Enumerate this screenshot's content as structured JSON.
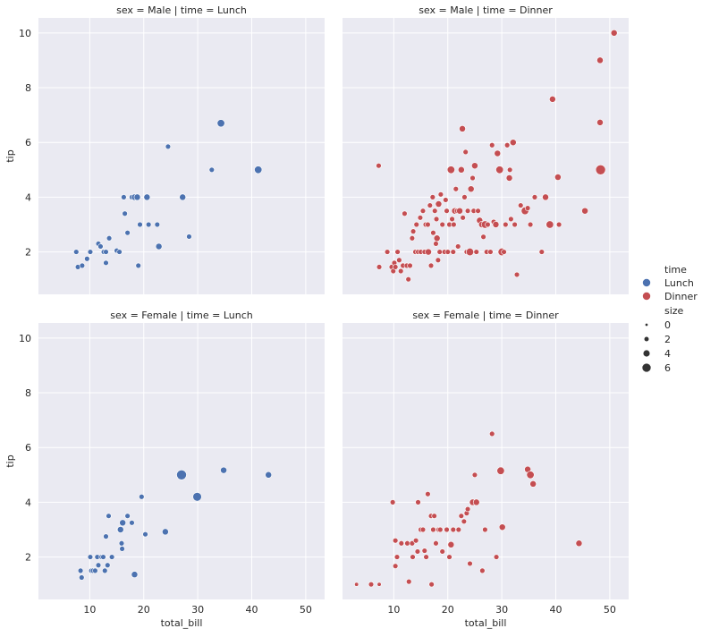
{
  "chart_data": {
    "type": "scatter",
    "xlim": [
      0.5,
      53.5
    ],
    "ylim": [
      0.45,
      10.55
    ],
    "x_ticks": [
      "10",
      "20",
      "30",
      "40",
      "50"
    ],
    "y_ticks": [
      "2",
      "4",
      "6",
      "8",
      "10"
    ],
    "xlabel": "total_bill",
    "ylabel": "tip",
    "grid": true,
    "legend_placement": "center-right",
    "colors": {
      "Lunch": "#4c72b0",
      "Dinner": "#c44e52",
      "background": "#eaeaf2",
      "grid": "#ffffff"
    },
    "legend": {
      "hue_title": "time",
      "hue_entries": [
        "Lunch",
        "Dinner"
      ],
      "size_title": "size",
      "size_entries": [
        {
          "label": "0",
          "value": 0
        },
        {
          "label": "2",
          "value": 2
        },
        {
          "label": "4",
          "value": 4
        },
        {
          "label": "6",
          "value": 6
        }
      ]
    },
    "panels": [
      {
        "title": "sex = Male | time = Lunch",
        "hue": "Lunch",
        "row": 0,
        "col": 0,
        "points": [
          [
            7.5,
            2.0,
            2
          ],
          [
            7.8,
            1.45,
            2
          ],
          [
            8.6,
            1.5,
            2
          ],
          [
            9.5,
            1.75,
            2
          ],
          [
            10.1,
            2.0,
            2
          ],
          [
            11.6,
            2.3,
            2
          ],
          [
            12.0,
            2.2,
            2
          ],
          [
            12.6,
            2.0,
            2
          ],
          [
            13.0,
            2.0,
            2
          ],
          [
            13.0,
            1.6,
            2
          ],
          [
            13.6,
            2.5,
            2
          ],
          [
            15.0,
            2.05,
            2
          ],
          [
            15.5,
            2.0,
            2
          ],
          [
            16.3,
            4.0,
            2
          ],
          [
            16.5,
            3.4,
            2
          ],
          [
            17.0,
            2.7,
            2
          ],
          [
            17.8,
            4.0,
            2
          ],
          [
            18.3,
            4.0,
            3
          ],
          [
            18.8,
            4.0,
            3
          ],
          [
            19.0,
            1.5,
            2
          ],
          [
            19.3,
            3.0,
            2
          ],
          [
            20.6,
            4.0,
            3
          ],
          [
            20.9,
            3.0,
            2
          ],
          [
            22.5,
            3.0,
            2
          ],
          [
            22.8,
            2.2,
            3
          ],
          [
            24.5,
            5.85,
            2
          ],
          [
            27.2,
            4.0,
            3
          ],
          [
            28.4,
            2.56,
            2
          ],
          [
            32.6,
            5.0,
            2
          ],
          [
            34.3,
            6.7,
            4
          ],
          [
            41.2,
            5.0,
            4
          ]
        ]
      },
      {
        "title": "sex = Male | time = Dinner",
        "hue": "Dinner",
        "row": 0,
        "col": 1,
        "points": [
          [
            7.2,
            5.15,
            2
          ],
          [
            7.3,
            1.45,
            2
          ],
          [
            8.8,
            2.0,
            2
          ],
          [
            9.6,
            1.45,
            2
          ],
          [
            9.9,
            1.3,
            2
          ],
          [
            10.1,
            1.6,
            2
          ],
          [
            10.3,
            1.45,
            2
          ],
          [
            10.7,
            2.0,
            2
          ],
          [
            11.0,
            1.7,
            2
          ],
          [
            11.3,
            1.3,
            2
          ],
          [
            11.7,
            1.5,
            2
          ],
          [
            12.0,
            3.4,
            2
          ],
          [
            12.4,
            1.5,
            2
          ],
          [
            12.7,
            1.0,
            2
          ],
          [
            13.0,
            1.5,
            2
          ],
          [
            13.4,
            2.5,
            2
          ],
          [
            13.6,
            2.75,
            2
          ],
          [
            14.0,
            2.0,
            2
          ],
          [
            14.2,
            3.0,
            2
          ],
          [
            14.5,
            2.0,
            2
          ],
          [
            14.9,
            3.25,
            2
          ],
          [
            15.0,
            2.0,
            2
          ],
          [
            15.4,
            3.5,
            2
          ],
          [
            15.7,
            2.0,
            2
          ],
          [
            15.9,
            3.0,
            2
          ],
          [
            16.3,
            3.0,
            2
          ],
          [
            16.4,
            2.0,
            3
          ],
          [
            16.7,
            3.7,
            2
          ],
          [
            16.9,
            1.5,
            2
          ],
          [
            17.2,
            4.0,
            2
          ],
          [
            17.3,
            2.7,
            2
          ],
          [
            17.6,
            3.5,
            2
          ],
          [
            17.8,
            2.3,
            2
          ],
          [
            17.9,
            3.2,
            2
          ],
          [
            18.0,
            2.5,
            3
          ],
          [
            18.2,
            1.7,
            2
          ],
          [
            18.3,
            3.75,
            3
          ],
          [
            18.5,
            2.0,
            2
          ],
          [
            18.7,
            4.1,
            2
          ],
          [
            19.0,
            3.0,
            2
          ],
          [
            19.4,
            2.0,
            2
          ],
          [
            19.6,
            3.9,
            2
          ],
          [
            19.8,
            3.5,
            2
          ],
          [
            20.0,
            2.0,
            2
          ],
          [
            20.3,
            3.0,
            2
          ],
          [
            20.6,
            5.0,
            4
          ],
          [
            20.8,
            3.2,
            2
          ],
          [
            21.0,
            2.0,
            2
          ],
          [
            21.1,
            3.0,
            2
          ],
          [
            21.3,
            3.5,
            3
          ],
          [
            21.5,
            4.3,
            2
          ],
          [
            21.7,
            3.5,
            2
          ],
          [
            21.9,
            2.2,
            2
          ],
          [
            22.2,
            3.5,
            3
          ],
          [
            22.5,
            5.0,
            3
          ],
          [
            22.7,
            6.5,
            3
          ],
          [
            22.8,
            3.25,
            2
          ],
          [
            23.1,
            4.0,
            2
          ],
          [
            23.3,
            5.65,
            2
          ],
          [
            23.5,
            2.0,
            2
          ],
          [
            23.7,
            3.5,
            2
          ],
          [
            24.0,
            2.0,
            3
          ],
          [
            24.1,
            2.0,
            4
          ],
          [
            24.3,
            4.3,
            3
          ],
          [
            24.6,
            4.7,
            2
          ],
          [
            24.8,
            3.5,
            2
          ],
          [
            25.0,
            5.15,
            3
          ],
          [
            25.3,
            2.0,
            2
          ],
          [
            25.6,
            3.5,
            2
          ],
          [
            25.9,
            3.15,
            3
          ],
          [
            26.3,
            3.0,
            3
          ],
          [
            26.6,
            2.55,
            2
          ],
          [
            26.9,
            3.0,
            4
          ],
          [
            27.2,
            2.0,
            2
          ],
          [
            27.4,
            3.0,
            2
          ],
          [
            27.9,
            2.0,
            2
          ],
          [
            28.2,
            5.9,
            2
          ],
          [
            28.5,
            3.1,
            2
          ],
          [
            28.9,
            3.0,
            3
          ],
          [
            29.2,
            5.6,
            3
          ],
          [
            29.6,
            5.0,
            4
          ],
          [
            30.0,
            2.0,
            4
          ],
          [
            30.4,
            2.0,
            2
          ],
          [
            30.7,
            3.0,
            2
          ],
          [
            31.0,
            5.9,
            2
          ],
          [
            31.4,
            4.7,
            3
          ],
          [
            31.5,
            5.0,
            2
          ],
          [
            31.7,
            3.2,
            2
          ],
          [
            32.1,
            6.0,
            3
          ],
          [
            32.4,
            3.0,
            2
          ],
          [
            32.8,
            1.17,
            2
          ],
          [
            33.5,
            3.7,
            2
          ],
          [
            34.3,
            3.5,
            4
          ],
          [
            34.8,
            3.6,
            2
          ],
          [
            35.3,
            3.0,
            2
          ],
          [
            36.1,
            4.0,
            2
          ],
          [
            37.4,
            2.0,
            2
          ],
          [
            38.1,
            4.0,
            3
          ],
          [
            38.7,
            3.0,
            3
          ],
          [
            38.9,
            3.0,
            4
          ],
          [
            39.4,
            7.58,
            3
          ],
          [
            40.4,
            4.73,
            3
          ],
          [
            40.6,
            3.0,
            2
          ],
          [
            45.4,
            3.5,
            3
          ],
          [
            48.2,
            6.73,
            3
          ],
          [
            48.2,
            9.0,
            3
          ],
          [
            48.3,
            5.0,
            6
          ],
          [
            50.8,
            10.0,
            3
          ]
        ]
      },
      {
        "title": "sex = Female | time = Lunch",
        "hue": "Lunch",
        "row": 1,
        "col": 0,
        "points": [
          [
            8.3,
            1.5,
            2
          ],
          [
            8.5,
            1.25,
            2
          ],
          [
            10.1,
            2.0,
            2
          ],
          [
            10.3,
            1.5,
            2
          ],
          [
            10.6,
            1.5,
            2
          ],
          [
            11.0,
            1.5,
            2
          ],
          [
            11.4,
            2.0,
            2
          ],
          [
            11.6,
            1.7,
            2
          ],
          [
            12.2,
            2.0,
            2
          ],
          [
            12.5,
            2.0,
            2
          ],
          [
            12.8,
            1.5,
            2
          ],
          [
            13.0,
            2.75,
            2
          ],
          [
            13.3,
            1.7,
            2
          ],
          [
            13.5,
            3.5,
            2
          ],
          [
            14.1,
            2.0,
            2
          ],
          [
            15.5,
            3.0,
            2
          ],
          [
            15.7,
            3.0,
            3
          ],
          [
            15.9,
            2.5,
            2
          ],
          [
            16.0,
            2.3,
            2
          ],
          [
            16.1,
            3.25,
            3
          ],
          [
            17.0,
            3.5,
            2
          ],
          [
            17.8,
            3.25,
            2
          ],
          [
            18.3,
            1.36,
            3
          ],
          [
            19.6,
            4.2,
            2
          ],
          [
            20.3,
            2.83,
            2
          ],
          [
            24.0,
            2.92,
            3
          ],
          [
            27.0,
            5.0,
            6
          ],
          [
            29.9,
            4.2,
            5
          ],
          [
            34.8,
            5.17,
            3
          ],
          [
            43.1,
            5.0,
            3
          ]
        ]
      },
      {
        "title": "sex = Female | time = Dinner",
        "hue": "Dinner",
        "row": 1,
        "col": 1,
        "points": [
          [
            3.1,
            1.0,
            1
          ],
          [
            5.8,
            1.0,
            2
          ],
          [
            7.3,
            1.0,
            1
          ],
          [
            9.8,
            4.0,
            2
          ],
          [
            10.3,
            1.67,
            2
          ],
          [
            10.3,
            2.6,
            2
          ],
          [
            10.6,
            2.0,
            2
          ],
          [
            11.4,
            2.5,
            2
          ],
          [
            12.5,
            2.5,
            2
          ],
          [
            12.8,
            1.1,
            2
          ],
          [
            13.4,
            2.5,
            2
          ],
          [
            13.5,
            2.0,
            2
          ],
          [
            14.1,
            2.6,
            2
          ],
          [
            14.4,
            2.2,
            2
          ],
          [
            14.5,
            4.0,
            2
          ],
          [
            15.0,
            3.0,
            2
          ],
          [
            15.4,
            3.0,
            2
          ],
          [
            15.7,
            2.23,
            2
          ],
          [
            16.0,
            2.0,
            2
          ],
          [
            16.3,
            4.3,
            2
          ],
          [
            16.9,
            3.5,
            2
          ],
          [
            17.0,
            1.0,
            2
          ],
          [
            17.3,
            3.0,
            2
          ],
          [
            17.5,
            3.5,
            2
          ],
          [
            17.8,
            2.5,
            2
          ],
          [
            18.3,
            3.0,
            2
          ],
          [
            18.6,
            3.0,
            2
          ],
          [
            19.0,
            2.2,
            2
          ],
          [
            19.8,
            3.0,
            2
          ],
          [
            20.3,
            2.0,
            2
          ],
          [
            20.6,
            2.45,
            3
          ],
          [
            21.0,
            3.0,
            2
          ],
          [
            22.0,
            3.0,
            2
          ],
          [
            22.5,
            3.5,
            2
          ],
          [
            23.0,
            3.3,
            2
          ],
          [
            23.5,
            3.6,
            2
          ],
          [
            23.7,
            3.75,
            2
          ],
          [
            24.1,
            1.76,
            2
          ],
          [
            24.6,
            4.0,
            3
          ],
          [
            25.0,
            5.0,
            2
          ],
          [
            25.3,
            4.0,
            3
          ],
          [
            26.4,
            1.5,
            2
          ],
          [
            26.9,
            3.0,
            2
          ],
          [
            28.2,
            6.5,
            2
          ],
          [
            29.0,
            2.0,
            2
          ],
          [
            29.8,
            5.15,
            4
          ],
          [
            30.1,
            3.09,
            3
          ],
          [
            34.8,
            5.2,
            3
          ],
          [
            35.3,
            5.0,
            4
          ],
          [
            35.8,
            4.67,
            3
          ],
          [
            44.3,
            2.5,
            3
          ]
        ]
      }
    ]
  }
}
